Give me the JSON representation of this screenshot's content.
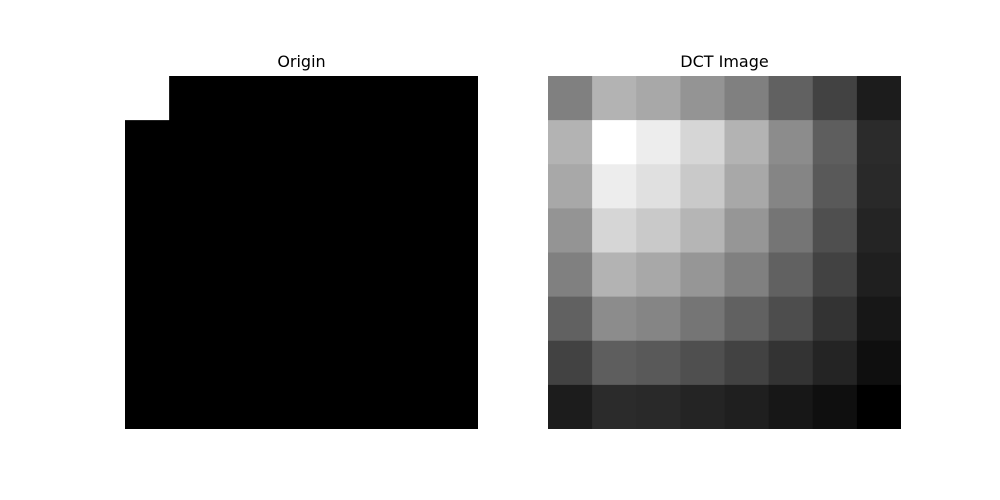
{
  "chart_data": [
    {
      "type": "heatmap",
      "title": "Origin",
      "colormap": "gray",
      "rows": 8,
      "cols": 8,
      "values": [
        [
          1,
          0,
          0,
          0,
          0,
          0,
          0,
          0
        ],
        [
          0,
          0,
          0,
          0,
          0,
          0,
          0,
          0
        ],
        [
          0,
          0,
          0,
          0,
          0,
          0,
          0,
          0
        ],
        [
          0,
          0,
          0,
          0,
          0,
          0,
          0,
          0
        ],
        [
          0,
          0,
          0,
          0,
          0,
          0,
          0,
          0
        ],
        [
          0,
          0,
          0,
          0,
          0,
          0,
          0,
          0
        ],
        [
          0,
          0,
          0,
          0,
          0,
          0,
          0,
          0
        ],
        [
          0,
          0,
          0,
          0,
          0,
          0,
          0,
          0
        ]
      ],
      "vmin": 0,
      "vmax": 1,
      "axes_visible": false
    },
    {
      "type": "heatmap",
      "title": "DCT Image",
      "colormap": "gray",
      "rows": 8,
      "cols": 8,
      "values": [
        [
          0.5,
          0.7,
          0.66,
          0.58,
          0.5,
          0.38,
          0.26,
          0.11
        ],
        [
          0.7,
          1.0,
          0.93,
          0.84,
          0.7,
          0.55,
          0.37,
          0.17
        ],
        [
          0.66,
          0.93,
          0.88,
          0.79,
          0.66,
          0.52,
          0.35,
          0.16
        ],
        [
          0.58,
          0.84,
          0.79,
          0.71,
          0.59,
          0.46,
          0.31,
          0.14
        ],
        [
          0.5,
          0.7,
          0.66,
          0.59,
          0.5,
          0.38,
          0.26,
          0.12
        ],
        [
          0.38,
          0.55,
          0.52,
          0.46,
          0.38,
          0.3,
          0.2,
          0.09
        ],
        [
          0.26,
          0.37,
          0.35,
          0.31,
          0.26,
          0.2,
          0.14,
          0.06
        ],
        [
          0.11,
          0.17,
          0.16,
          0.14,
          0.12,
          0.09,
          0.06,
          0.0
        ]
      ],
      "vmin": 0,
      "vmax": 1,
      "axes_visible": false
    }
  ]
}
